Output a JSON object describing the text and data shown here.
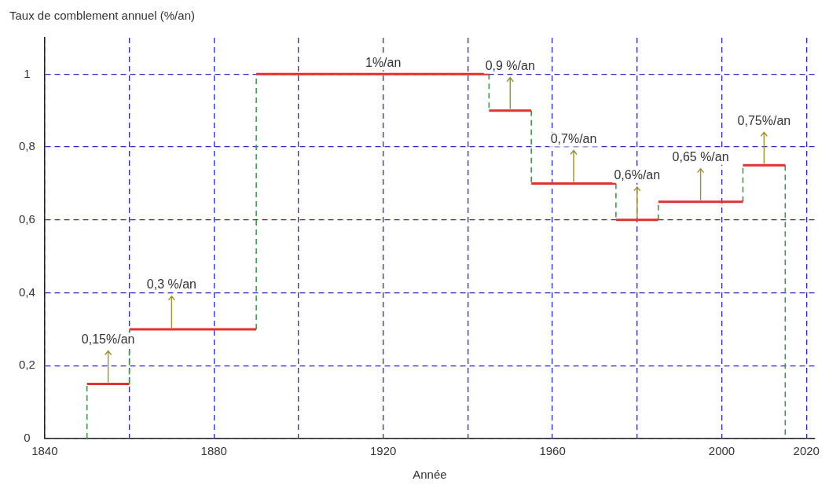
{
  "chart_data": {
    "type": "line",
    "ylabel": "Taux de comblement annuel (%/an)",
    "xlabel": "Année",
    "series": [
      {
        "color": "#e3312c",
        "line_style": "solid",
        "x": [
          1850,
          1860,
          null,
          1860,
          1890,
          null,
          1890,
          1945,
          null,
          1945,
          1955,
          null,
          1955,
          1975,
          null,
          1975,
          1985,
          null,
          1985,
          2005,
          null,
          2005,
          2015
        ],
        "values": [
          0.15,
          0.15,
          null,
          0.3,
          0.3,
          null,
          1,
          1,
          null,
          0.9,
          0.9,
          null,
          0.7,
          0.7,
          null,
          0.6,
          0.6,
          null,
          0.65,
          0.65,
          null,
          0.75,
          0.75
        ]
      },
      {
        "color": "#3a9a48",
        "line_style": "dashed",
        "x": [
          1850,
          1850,
          null,
          1860,
          1860,
          null,
          1890,
          1890,
          null,
          1945,
          1945,
          null,
          1955,
          1955,
          null,
          1975,
          1975,
          null,
          1985,
          1985,
          null,
          2005,
          2005,
          null,
          2015,
          2015
        ],
        "values": [
          0,
          0.15,
          null,
          0.15,
          0.3,
          null,
          0.3,
          1,
          null,
          1,
          0.9,
          null,
          0.9,
          0.7,
          null,
          0.7,
          0.6,
          null,
          0.6,
          0.65,
          null,
          0.65,
          0.75,
          null,
          0.75,
          0
        ]
      }
    ],
    "xlim": [
      1840,
      2022
    ],
    "xticks": [
      1840,
      {
        "value": 1860,
        "label": null
      },
      1880,
      {
        "value": 1900,
        "label": null
      },
      1920,
      {
        "value": 1940,
        "label": null
      },
      1960,
      {
        "value": 1980,
        "label": null
      },
      2000,
      2020
    ],
    "ylim": [
      0,
      1.1
    ],
    "yticks": [
      0,
      {
        "value": 0.2,
        "label": "0,2"
      },
      {
        "value": 0.4,
        "label": "0,4"
      },
      {
        "value": 0.6,
        "label": "0,6"
      },
      {
        "value": 0.8,
        "label": "0,8"
      },
      1
    ],
    "grid": true,
    "legend": false,
    "marker": "none",
    "annotations": [
      {
        "text": "0,15%/an",
        "x": 1855,
        "y": 0.15
      },
      {
        "text": "0,3 %/an",
        "x": 1870,
        "y": 0.3
      },
      {
        "text": "1%/an",
        "x": 1920,
        "y": 1
      },
      {
        "text": "0,9 %/an",
        "x": 1950,
        "y": 0.9
      },
      {
        "text": "0,7%/an",
        "x": 1965,
        "y": 0.7
      },
      {
        "text": "0,6%/an",
        "x": 1980,
        "y": 0.6
      },
      {
        "text": "0,65 %/an",
        "x": 1995,
        "y": 0.65
      },
      {
        "text": "0,75%/an",
        "x": 2010,
        "y": 0.75
      }
    ]
  }
}
